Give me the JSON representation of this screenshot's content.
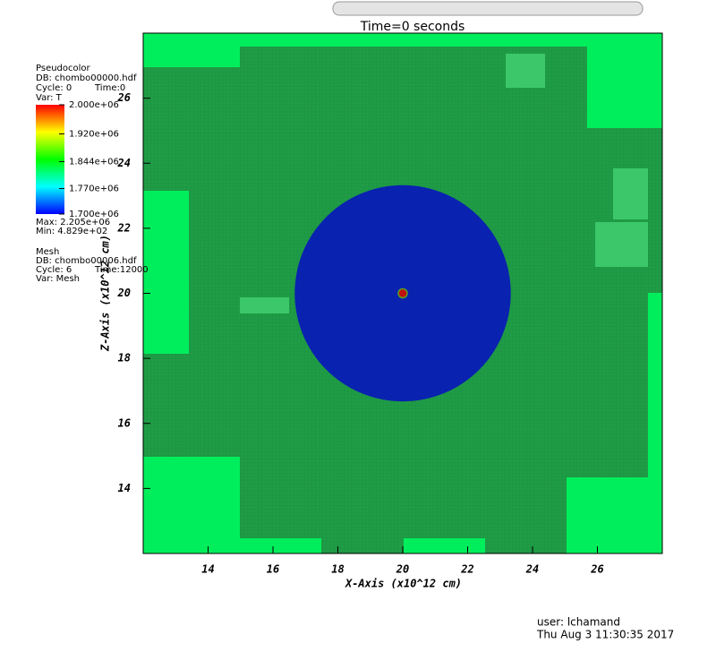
{
  "chart_data": {
    "type": "pseudocolor",
    "title": "Time=0 seconds",
    "xlabel": "X-Axis (x10^12 cm)",
    "ylabel": "Z-Axis (x10^12 cm)",
    "xlim": [
      12,
      28
    ],
    "ylim": [
      12,
      28
    ],
    "xticks": [
      14,
      16,
      18,
      20,
      22,
      24,
      26
    ],
    "yticks": [
      14,
      16,
      18,
      20,
      22,
      24,
      26
    ],
    "background_color": "#1f9c46",
    "circle": {
      "cx": 20,
      "cy": 20,
      "r": 3.33,
      "color": "#0a22b0"
    },
    "colorbar": {
      "clim": [
        1700000,
        2000000
      ],
      "colors": [
        "#0000ff",
        "#00ffff",
        "#00ff00",
        "#ffff00",
        "#ff0000"
      ],
      "ticks": [
        {
          "value": 2000000,
          "label": "2.000e+06"
        },
        {
          "value": 1920000,
          "label": "1.920e+06"
        },
        {
          "value": 1844000,
          "label": "1.844e+06"
        },
        {
          "value": 1770000,
          "label": "1.770e+06"
        },
        {
          "value": 1700000,
          "label": "1.700e+06"
        }
      ]
    }
  },
  "legend": {
    "plot": "Pseudocolor",
    "db": "DB: chombo00000.hdf",
    "cycle": "Cycle: 0",
    "time": "Time:0",
    "var": "Var: T",
    "max": "Max: 2.205e+06",
    "min": "Min: 4.829e+02",
    "mesh": "Mesh",
    "mesh_db": "DB: chombo00006.hdf",
    "mesh_cycle": "Cycle: 6",
    "mesh_time": "Time:12000",
    "mesh_var": "Var: Mesh"
  },
  "footer": {
    "user": "user: lchamand",
    "date": "Thu Aug  3 11:30:35 2017"
  }
}
